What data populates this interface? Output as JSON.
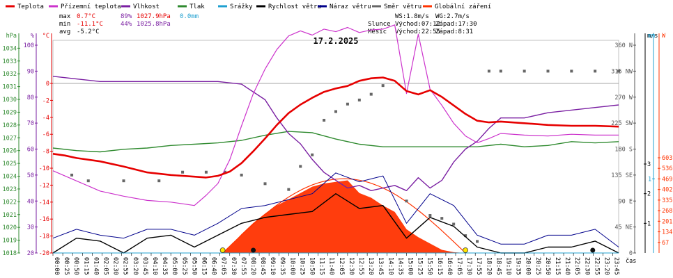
{
  "chart_data": {
    "type": "line",
    "title": "17.2.2025",
    "xlabel": "čas",
    "legend_position": "top",
    "legend": [
      {
        "name": "Teplota",
        "color": "#e60000"
      },
      {
        "name": "Přízemní teplota",
        "color": "#cc33cc"
      },
      {
        "name": "Vlhkost",
        "color": "#7a1fa2"
      },
      {
        "name": "Tlak",
        "color": "#2f8a2f"
      },
      {
        "name": "Srážky",
        "color": "#1fa0d0"
      },
      {
        "name": "Rychlost větru",
        "color": "#000000"
      },
      {
        "name": "Náraz větru",
        "color": "#00008b"
      },
      {
        "name": "Směr větru",
        "color": "#666666"
      },
      {
        "name": "Globální záření",
        "color": "#ff3300"
      }
    ],
    "stats": [
      {
        "label": "max",
        "temp": "0.7°C",
        "hum": "89%",
        "press": "1027.9hPa",
        "rain": "0.0mm"
      },
      {
        "label": "min",
        "temp": "-11.1°C",
        "hum": "44%",
        "press": "1025.8hPa",
        "rain": ""
      },
      {
        "label": "avg",
        "temp": "-5.2°C",
        "hum": "",
        "press": "",
        "rain": ""
      }
    ],
    "wind_info": {
      "ws": "WS:1.8m/s",
      "wg": "WG:2.7m/s"
    },
    "sun_info": {
      "label": "Slunce",
      "rise": "Východ:07:12",
      "set": "Západ:17:30"
    },
    "moon_info": {
      "label": "Měsíc",
      "rise": "Východ:22:55",
      "set": "Západ:8:31"
    },
    "axes": {
      "hpa": {
        "title": "hPa",
        "ticks": [
          "1034",
          "1033",
          "1032",
          "1031",
          "1030",
          "1029",
          "1028",
          "1027",
          "1026",
          "1025",
          "1024",
          "1023",
          "1022",
          "1021",
          "1020",
          "1019",
          "1018"
        ],
        "color": "#2f8a2f"
      },
      "pct": {
        "title": "%",
        "ticks": [
          "100",
          "90",
          "80",
          "70",
          "60",
          "50",
          "40",
          "30",
          "20"
        ],
        "color": "#7a1fa2"
      },
      "temp": {
        "title": "°C",
        "ticks": [
          "0",
          "-2",
          "-4",
          "-6",
          "-8",
          "-10",
          "-12",
          "-14",
          "-16",
          "-18",
          "-20"
        ],
        "ticks_top": "0",
        "color": "#e60000"
      },
      "dir": {
        "title": "",
        "ticks": [
          "360 N",
          "315 NW",
          "270 W",
          "225 SW",
          "180 S",
          "135 SE",
          "90 E",
          "45 NE",
          "0"
        ],
        "color": "#555555"
      },
      "ms": {
        "title": "m/s",
        "ticks": [
          "3",
          "2",
          "1"
        ],
        "color": "#000000"
      },
      "mm": {
        "title": "mm",
        "ticks": [
          "1"
        ],
        "color": "#1fa0d0"
      },
      "w": {
        "title": "W",
        "ticks": [
          "603",
          "536",
          "469",
          "402",
          "335",
          "268",
          "201",
          "134",
          "67"
        ],
        "color": "#ff3300"
      }
    },
    "x_ticks": [
      "00:00",
      "00:25",
      "00:50",
      "01:15",
      "01:40",
      "02:05",
      "02:30",
      "02:55",
      "03:20",
      "03:45",
      "04:10",
      "04:35",
      "05:00",
      "05:25",
      "05:50",
      "06:15",
      "06:40",
      "07:05",
      "07:30",
      "07:55",
      "08:20",
      "08:45",
      "09:10",
      "09:35",
      "10:00",
      "10:25",
      "10:50",
      "11:15",
      "11:40",
      "12:05",
      "12:30",
      "12:55",
      "13:20",
      "13:45",
      "14:10",
      "14:35",
      "15:00",
      "15:25",
      "15:50",
      "16:15",
      "16:40",
      "17:05",
      "17:30",
      "17:55",
      "18:20",
      "18:45",
      "19:10",
      "19:35",
      "20:00",
      "20:25",
      "20:50",
      "21:15",
      "21:40",
      "22:05",
      "22:30",
      "22:55",
      "23:20",
      "23:45"
    ],
    "series": [
      {
        "name": "Teplota",
        "unit": "°C",
        "x": [
          0,
          0.5,
          1,
          2,
          3,
          4,
          5,
          6,
          6.5,
          7,
          7.5,
          8,
          8.5,
          9,
          9.5,
          10,
          10.5,
          11,
          11.5,
          12,
          12.5,
          13,
          13.5,
          14,
          14.5,
          15,
          15.5,
          16,
          16.5,
          17,
          17.5,
          18,
          18.5,
          19,
          20,
          21,
          22,
          23,
          24
        ],
        "values": [
          -8.3,
          -8.5,
          -8.8,
          -9.2,
          -9.8,
          -10.5,
          -10.8,
          -11.0,
          -11.1,
          -10.9,
          -10.4,
          -9.4,
          -8.0,
          -6.5,
          -4.9,
          -3.5,
          -2.5,
          -1.7,
          -1.0,
          -0.6,
          -0.3,
          0.3,
          0.6,
          0.7,
          0.3,
          -0.9,
          -1.3,
          -0.8,
          -1.6,
          -2.6,
          -3.6,
          -4.4,
          -4.6,
          -4.5,
          -4.7,
          -4.9,
          -5.0,
          -5.0,
          -5.1
        ]
      },
      {
        "name": "Přízemní teplota",
        "unit": "°C",
        "x": [
          0,
          1,
          2,
          3,
          4,
          5,
          5.5,
          6,
          6.5,
          7,
          7.5,
          8,
          8.5,
          9,
          9.5,
          10,
          10.5,
          11,
          11.5,
          12,
          12.5,
          13,
          13.5,
          14,
          14.5,
          15,
          15.5,
          16,
          16.5,
          17,
          17.5,
          18,
          18.5,
          19,
          20,
          21,
          22,
          23,
          24
        ],
        "values": [
          -10.3,
          -11.5,
          -12.7,
          -13.3,
          -13.8,
          -14.0,
          -14.2,
          -14.4,
          -13.2,
          -11.8,
          -9.0,
          -5.0,
          -1.2,
          1.7,
          4.0,
          5.6,
          6.2,
          5.7,
          6.4,
          6.1,
          6.6,
          6.0,
          6.3,
          6.4,
          6.9,
          -1.2,
          5.8,
          -0.7,
          -2.6,
          -4.7,
          -6.2,
          -7.0,
          -6.5,
          -5.9,
          -6.1,
          -6.2,
          -6.0,
          -6.1,
          -6.1
        ]
      },
      {
        "name": "Vlhkost",
        "unit": "%",
        "x": [
          0,
          1,
          2,
          3,
          4,
          5,
          6,
          7,
          8,
          9,
          9.5,
          10,
          10.5,
          11,
          11.5,
          12,
          12.5,
          13,
          13.5,
          14,
          14.5,
          15,
          15.5,
          16,
          16.5,
          17,
          17.5,
          18,
          18.5,
          19,
          20,
          21,
          22,
          23,
          24
        ],
        "values": [
          88,
          87,
          86,
          86,
          86,
          86,
          86,
          86,
          85,
          79,
          72,
          66,
          62,
          56,
          51,
          48,
          45,
          46,
          44,
          45,
          46,
          44,
          49,
          45,
          48,
          55,
          60,
          63,
          68,
          72,
          72,
          74,
          75,
          76,
          77
        ]
      },
      {
        "name": "Tlak",
        "unit": "hPa",
        "x": [
          0,
          1,
          2,
          3,
          4,
          5,
          6,
          7,
          8,
          9,
          10,
          11,
          12,
          13,
          14,
          15,
          16,
          17,
          18,
          19,
          20,
          21,
          22,
          23,
          24
        ],
        "values": [
          1026.2,
          1026.0,
          1025.9,
          1026.1,
          1026.2,
          1026.4,
          1026.5,
          1026.6,
          1026.8,
          1027.2,
          1027.5,
          1027.4,
          1026.9,
          1026.5,
          1026.3,
          1026.3,
          1026.3,
          1026.3,
          1026.3,
          1026.5,
          1026.3,
          1026.4,
          1026.7,
          1026.6,
          1026.7
        ]
      },
      {
        "name": "Srážky",
        "unit": "mm",
        "x": [
          0,
          24
        ],
        "values": [
          0,
          0
        ]
      },
      {
        "name": "Rychlost větru",
        "unit": "m/s",
        "x": [
          0,
          1,
          2,
          3,
          4,
          5,
          6,
          7,
          8,
          9,
          10,
          11,
          12,
          13,
          14,
          15,
          16,
          17,
          18,
          19,
          20,
          21,
          22,
          23,
          24
        ],
        "values": [
          0,
          0.5,
          0.4,
          0,
          0.5,
          0.6,
          0.2,
          0.6,
          1.0,
          1.2,
          1.3,
          1.4,
          2.0,
          1.5,
          1.6,
          0.5,
          1.2,
          0.9,
          0.2,
          0,
          0,
          0.2,
          0.2,
          0.4,
          0
        ]
      },
      {
        "name": "Náraz větru",
        "unit": "m/s",
        "x": [
          0,
          1,
          2,
          3,
          4,
          5,
          6,
          7,
          8,
          9,
          10,
          11,
          12,
          13,
          14,
          15,
          16,
          17,
          18,
          19,
          20,
          21,
          22,
          23,
          24
        ],
        "values": [
          0.5,
          0.8,
          0.6,
          0.5,
          0.8,
          0.8,
          0.6,
          1.0,
          1.5,
          1.6,
          1.8,
          2.0,
          2.7,
          2.4,
          2.6,
          1.0,
          2.0,
          1.6,
          0.6,
          0.3,
          0.3,
          0.6,
          0.6,
          0.8,
          0.2
        ]
      },
      {
        "name": "Směr větru",
        "unit": "°",
        "x": [
          0.8,
          1.5,
          3,
          4.5,
          5.5,
          6.5,
          7.3,
          8,
          9,
          10,
          10.5,
          11,
          11.5,
          12,
          12.5,
          13,
          13.5,
          14,
          15,
          16,
          16.5,
          17,
          17.5,
          18,
          18.5,
          19,
          20,
          21,
          22,
          23,
          24
        ],
        "values": [
          135,
          125,
          125,
          125,
          140,
          140,
          140,
          135,
          120,
          110,
          150,
          170,
          230,
          245,
          258,
          265,
          275,
          290,
          90,
          65,
          60,
          50,
          30,
          20,
          315,
          315,
          315,
          315,
          315,
          315,
          315
        ]
      },
      {
        "name": "Globální záření",
        "unit": "W",
        "x": [
          7.2,
          7.5,
          8,
          8.5,
          9,
          9.5,
          10,
          10.5,
          11,
          11.5,
          12,
          12.5,
          13,
          13.5,
          14,
          14.5,
          15,
          15.5,
          16,
          16.5,
          17,
          17.5
        ],
        "values": [
          0,
          40,
          120,
          190,
          250,
          300,
          340,
          380,
          420,
          440,
          450,
          460,
          380,
          350,
          300,
          260,
          150,
          100,
          60,
          20,
          5,
          0
        ]
      }
    ]
  }
}
